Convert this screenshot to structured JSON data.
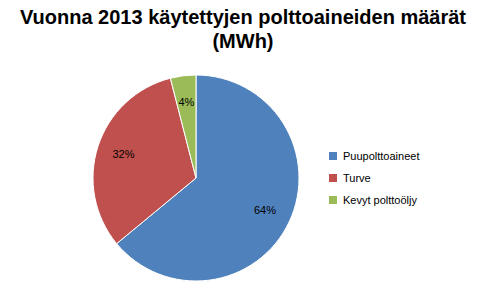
{
  "chart_data": {
    "type": "pie",
    "title": "Vuonna 2013 käytettyjen polttoaineiden määrät (MWh)",
    "categories": [
      "Puupolttoaineet",
      "Turve",
      "Kevyt polttoöljy"
    ],
    "values": [
      64,
      32,
      4
    ],
    "value_labels": [
      "64%",
      "32%",
      "4%"
    ],
    "colors": [
      "#4f81bd",
      "#c0504d",
      "#9bbb59"
    ],
    "data_labels": true,
    "legend": "right"
  }
}
